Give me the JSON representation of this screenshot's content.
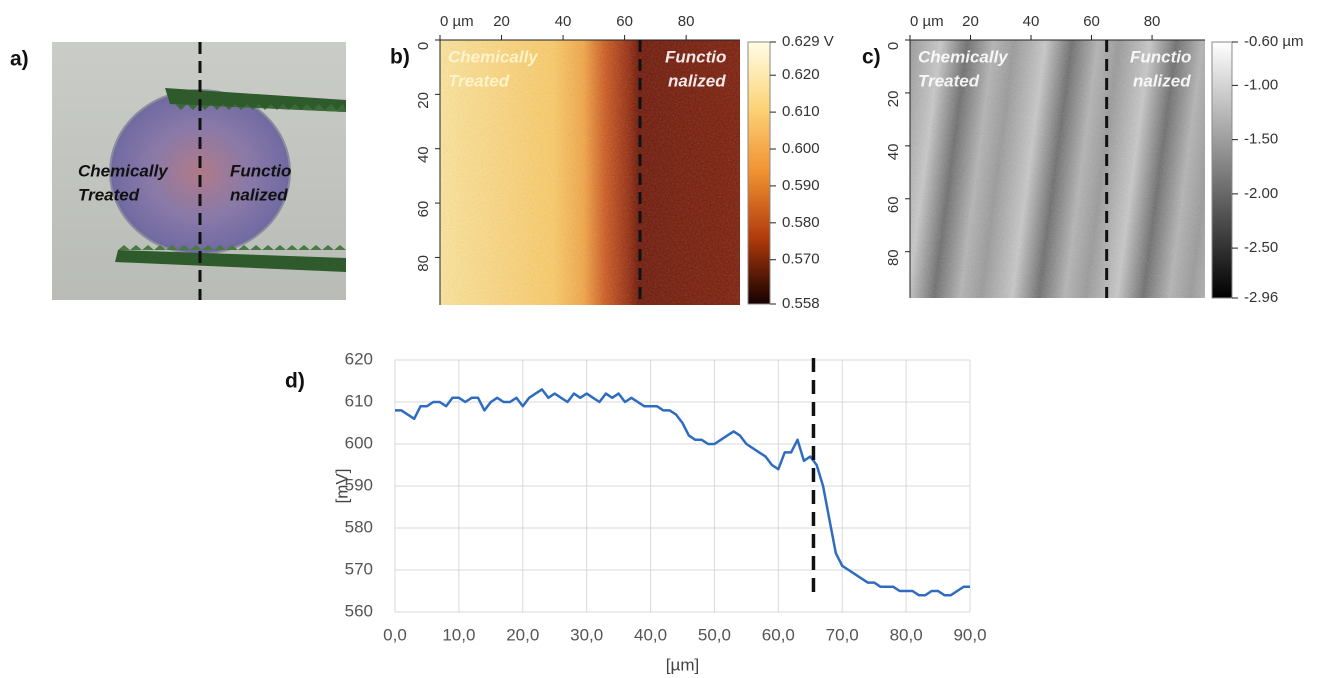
{
  "chart_data": [
    {
      "type": "photo",
      "label": "a)",
      "left_text": [
        "Chemically",
        "Treated"
      ],
      "right_text": [
        "Functio",
        "nalized"
      ]
    },
    {
      "type": "map",
      "label": "b)",
      "left_text": [
        "Chemically",
        "Treated"
      ],
      "right_text": [
        "Functio",
        "nalized"
      ],
      "xlim": [
        0,
        97.5
      ],
      "ylim": [
        0,
        97.5
      ],
      "xticks": [
        {
          "value": 0,
          "label": "0 µm"
        },
        20,
        40,
        60,
        80
      ],
      "yticks": [
        0,
        20,
        40,
        60,
        80
      ],
      "divider": 65,
      "colorbar_lim": [
        0.558,
        0.629
      ],
      "colorbar_ticks": [
        {
          "value": 0.629,
          "label": "0.629 V"
        },
        {
          "value": 0.62,
          "label": "0.620"
        },
        {
          "value": 0.61,
          "label": "0.610"
        },
        {
          "value": 0.6,
          "label": "0.600"
        },
        {
          "value": 0.59,
          "label": "0.590"
        },
        {
          "value": 0.58,
          "label": "0.580"
        },
        {
          "value": 0.57,
          "label": "0.570"
        },
        0.558
      ]
    },
    {
      "type": "map",
      "label": "c)",
      "left_text": [
        "Chemically",
        "Treated"
      ],
      "right_text": [
        "Functio",
        "nalized"
      ],
      "xlim": [
        0,
        97.5
      ],
      "ylim": [
        0,
        97.5
      ],
      "xticks": [
        {
          "value": 0,
          "label": "0 µm"
        },
        20,
        40,
        60,
        80
      ],
      "yticks": [
        0,
        20,
        40,
        60,
        80
      ],
      "divider": 65,
      "colorbar_lim": [
        -2.96,
        -0.6
      ],
      "colorbar_ticks": [
        {
          "value": -0.6,
          "label": "-0.60 µm"
        },
        {
          "value": -1,
          "label": "-1.00"
        },
        {
          "value": -1.5,
          "label": "-1.50"
        },
        {
          "value": -2,
          "label": "-2.00"
        },
        {
          "value": -2.5,
          "label": "-2.50"
        },
        -2.96
      ]
    },
    {
      "type": "line",
      "label": "d)",
      "xlabel": "[µm]",
      "ylabel": "[mV]",
      "grid": true,
      "divider": 65.5,
      "xlim": [
        0,
        90
      ],
      "ylim": [
        560,
        620
      ],
      "xticks": [
        {
          "value": 0,
          "label": "0,0"
        },
        {
          "value": 10,
          "label": "10,0"
        },
        {
          "value": 20,
          "label": "20,0"
        },
        {
          "value": 30,
          "label": "30,0"
        },
        {
          "value": 40,
          "label": "40,0"
        },
        {
          "value": 50,
          "label": "50,0"
        },
        {
          "value": 60,
          "label": "60,0"
        },
        {
          "value": 70,
          "label": "70,0"
        },
        {
          "value": 80,
          "label": "80,0"
        },
        {
          "value": 90,
          "label": "90,0"
        }
      ],
      "yticks": [
        560,
        570,
        580,
        590,
        600,
        610,
        620
      ],
      "x": [
        0,
        1,
        2,
        3,
        4,
        5,
        6,
        7,
        8,
        9,
        10,
        11,
        12,
        13,
        14,
        15,
        16,
        17,
        18,
        19,
        20,
        21,
        22,
        23,
        24,
        25,
        26,
        27,
        28,
        29,
        30,
        31,
        32,
        33,
        34,
        35,
        36,
        37,
        38,
        39,
        40,
        41,
        42,
        43,
        44,
        45,
        46,
        47,
        48,
        49,
        50,
        51,
        52,
        53,
        54,
        55,
        56,
        57,
        58,
        59,
        60,
        61,
        62,
        63,
        64,
        65,
        66,
        67,
        68,
        69,
        70,
        71,
        72,
        73,
        74,
        75,
        76,
        77,
        78,
        79,
        80,
        81,
        82,
        83,
        84,
        85,
        86,
        87,
        88,
        89,
        90
      ],
      "series": [
        {
          "color": "#2f6cc0",
          "values": [
            608,
            608,
            607,
            606,
            609,
            609,
            610,
            610,
            609,
            611,
            611,
            610,
            611,
            611,
            608,
            610,
            611,
            610,
            610,
            611,
            609,
            611,
            612,
            613,
            611,
            612,
            611,
            610,
            612,
            611,
            612,
            611,
            610,
            612,
            611,
            612,
            610,
            611,
            610,
            609,
            609,
            609,
            608,
            608,
            607,
            605,
            602,
            601,
            601,
            600,
            600,
            601,
            602,
            603,
            602,
            600,
            599,
            598,
            597,
            595,
            594,
            598,
            598,
            601,
            596,
            597,
            595,
            590,
            582,
            574,
            571,
            570,
            569,
            568,
            567,
            567,
            566,
            566,
            566,
            565,
            565,
            565,
            564,
            564,
            565,
            565,
            564,
            564,
            565,
            566,
            566
          ]
        }
      ]
    }
  ]
}
